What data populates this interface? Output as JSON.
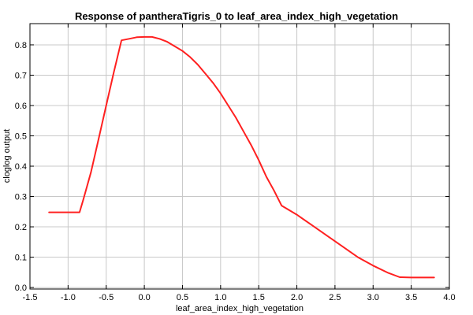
{
  "chart_data": {
    "type": "line",
    "title": "Response of pantheraTigris_0 to leaf_area_index_high_vegetation",
    "xlabel": "leaf_area_index_high_vegetation",
    "ylabel": "cloglog output",
    "xlim": [
      -1.5,
      4.0
    ],
    "ylim": [
      -0.005,
      0.87
    ],
    "xticks": [
      "-1.5",
      "-1.0",
      "-0.5",
      "0.0",
      "0.5",
      "1.0",
      "1.5",
      "2.0",
      "2.5",
      "3.0",
      "3.5",
      "4.0"
    ],
    "yticks": [
      "0.0",
      "0.1",
      "0.2",
      "0.3",
      "0.4",
      "0.5",
      "0.6",
      "0.7",
      "0.8"
    ],
    "grid": true,
    "series": [
      {
        "color": "#ff2020",
        "x": [
          -1.25,
          -1.1,
          -0.95,
          -0.85,
          -0.8,
          -0.7,
          -0.6,
          -0.5,
          -0.4,
          -0.3,
          -0.2,
          -0.1,
          0.0,
          0.1,
          0.2,
          0.3,
          0.4,
          0.5,
          0.6,
          0.7,
          0.8,
          0.9,
          1.0,
          1.1,
          1.2,
          1.3,
          1.4,
          1.5,
          1.6,
          1.7,
          1.8,
          1.9,
          2.0,
          2.2,
          2.4,
          2.6,
          2.8,
          3.0,
          3.2,
          3.35,
          3.5,
          3.6,
          3.8
        ],
        "y": [
          0.248,
          0.248,
          0.248,
          0.248,
          0.29,
          0.38,
          0.49,
          0.6,
          0.71,
          0.815,
          0.82,
          0.825,
          0.826,
          0.826,
          0.82,
          0.81,
          0.795,
          0.78,
          0.76,
          0.735,
          0.705,
          0.675,
          0.64,
          0.6,
          0.56,
          0.515,
          0.47,
          0.42,
          0.365,
          0.32,
          0.27,
          0.255,
          0.24,
          0.205,
          0.17,
          0.135,
          0.1,
          0.072,
          0.048,
          0.034,
          0.033,
          0.033,
          0.033
        ]
      }
    ]
  }
}
